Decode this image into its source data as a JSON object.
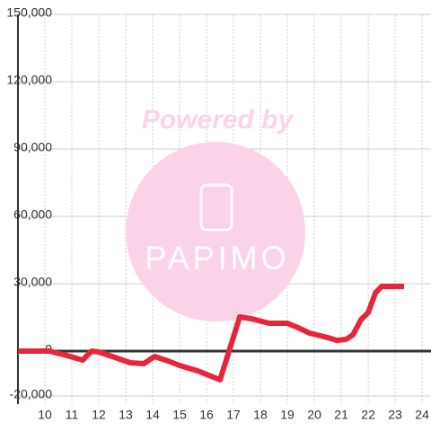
{
  "chart_data": {
    "type": "line",
    "x": [
      9,
      10.17,
      10.83,
      11.4,
      11.73,
      12,
      12.5,
      13.17,
      13.67,
      14.07,
      14.57,
      15,
      15.67,
      16.17,
      16.5,
      17.23,
      17.67,
      18.33,
      19,
      19.33,
      19.83,
      20.5,
      20.83,
      21.17,
      21.43,
      21.73,
      22,
      22.27,
      22.5,
      23.33
    ],
    "values": [
      0,
      0,
      -2000,
      -4000,
      0,
      -400,
      -2400,
      -5200,
      -5600,
      -2400,
      -4400,
      -6400,
      -8800,
      -11200,
      -12800,
      15200,
      14400,
      12400,
      12400,
      10800,
      8000,
      6000,
      4800,
      5200,
      7200,
      14000,
      17200,
      26000,
      28800,
      28800
    ],
    "color": "#e8253a",
    "xlim": [
      9,
      24.33
    ],
    "xticks": [
      10,
      11,
      12,
      13,
      14,
      15,
      16,
      17,
      18,
      19,
      20,
      21,
      22,
      23,
      24
    ],
    "ylim": [
      -23600,
      150000
    ],
    "yticks": [
      {
        "value": -20000,
        "label": "-20,000"
      },
      0,
      {
        "value": 30000,
        "label": "30,000"
      },
      {
        "value": 60000,
        "label": "60,000"
      },
      {
        "value": 90000,
        "label": "90,000"
      },
      {
        "value": 120000,
        "label": "120,000"
      },
      {
        "value": 150000,
        "label": "150,000"
      }
    ],
    "grid": true
  },
  "watermark": {
    "line1": "Powered by",
    "line2": "PAPIMO"
  }
}
